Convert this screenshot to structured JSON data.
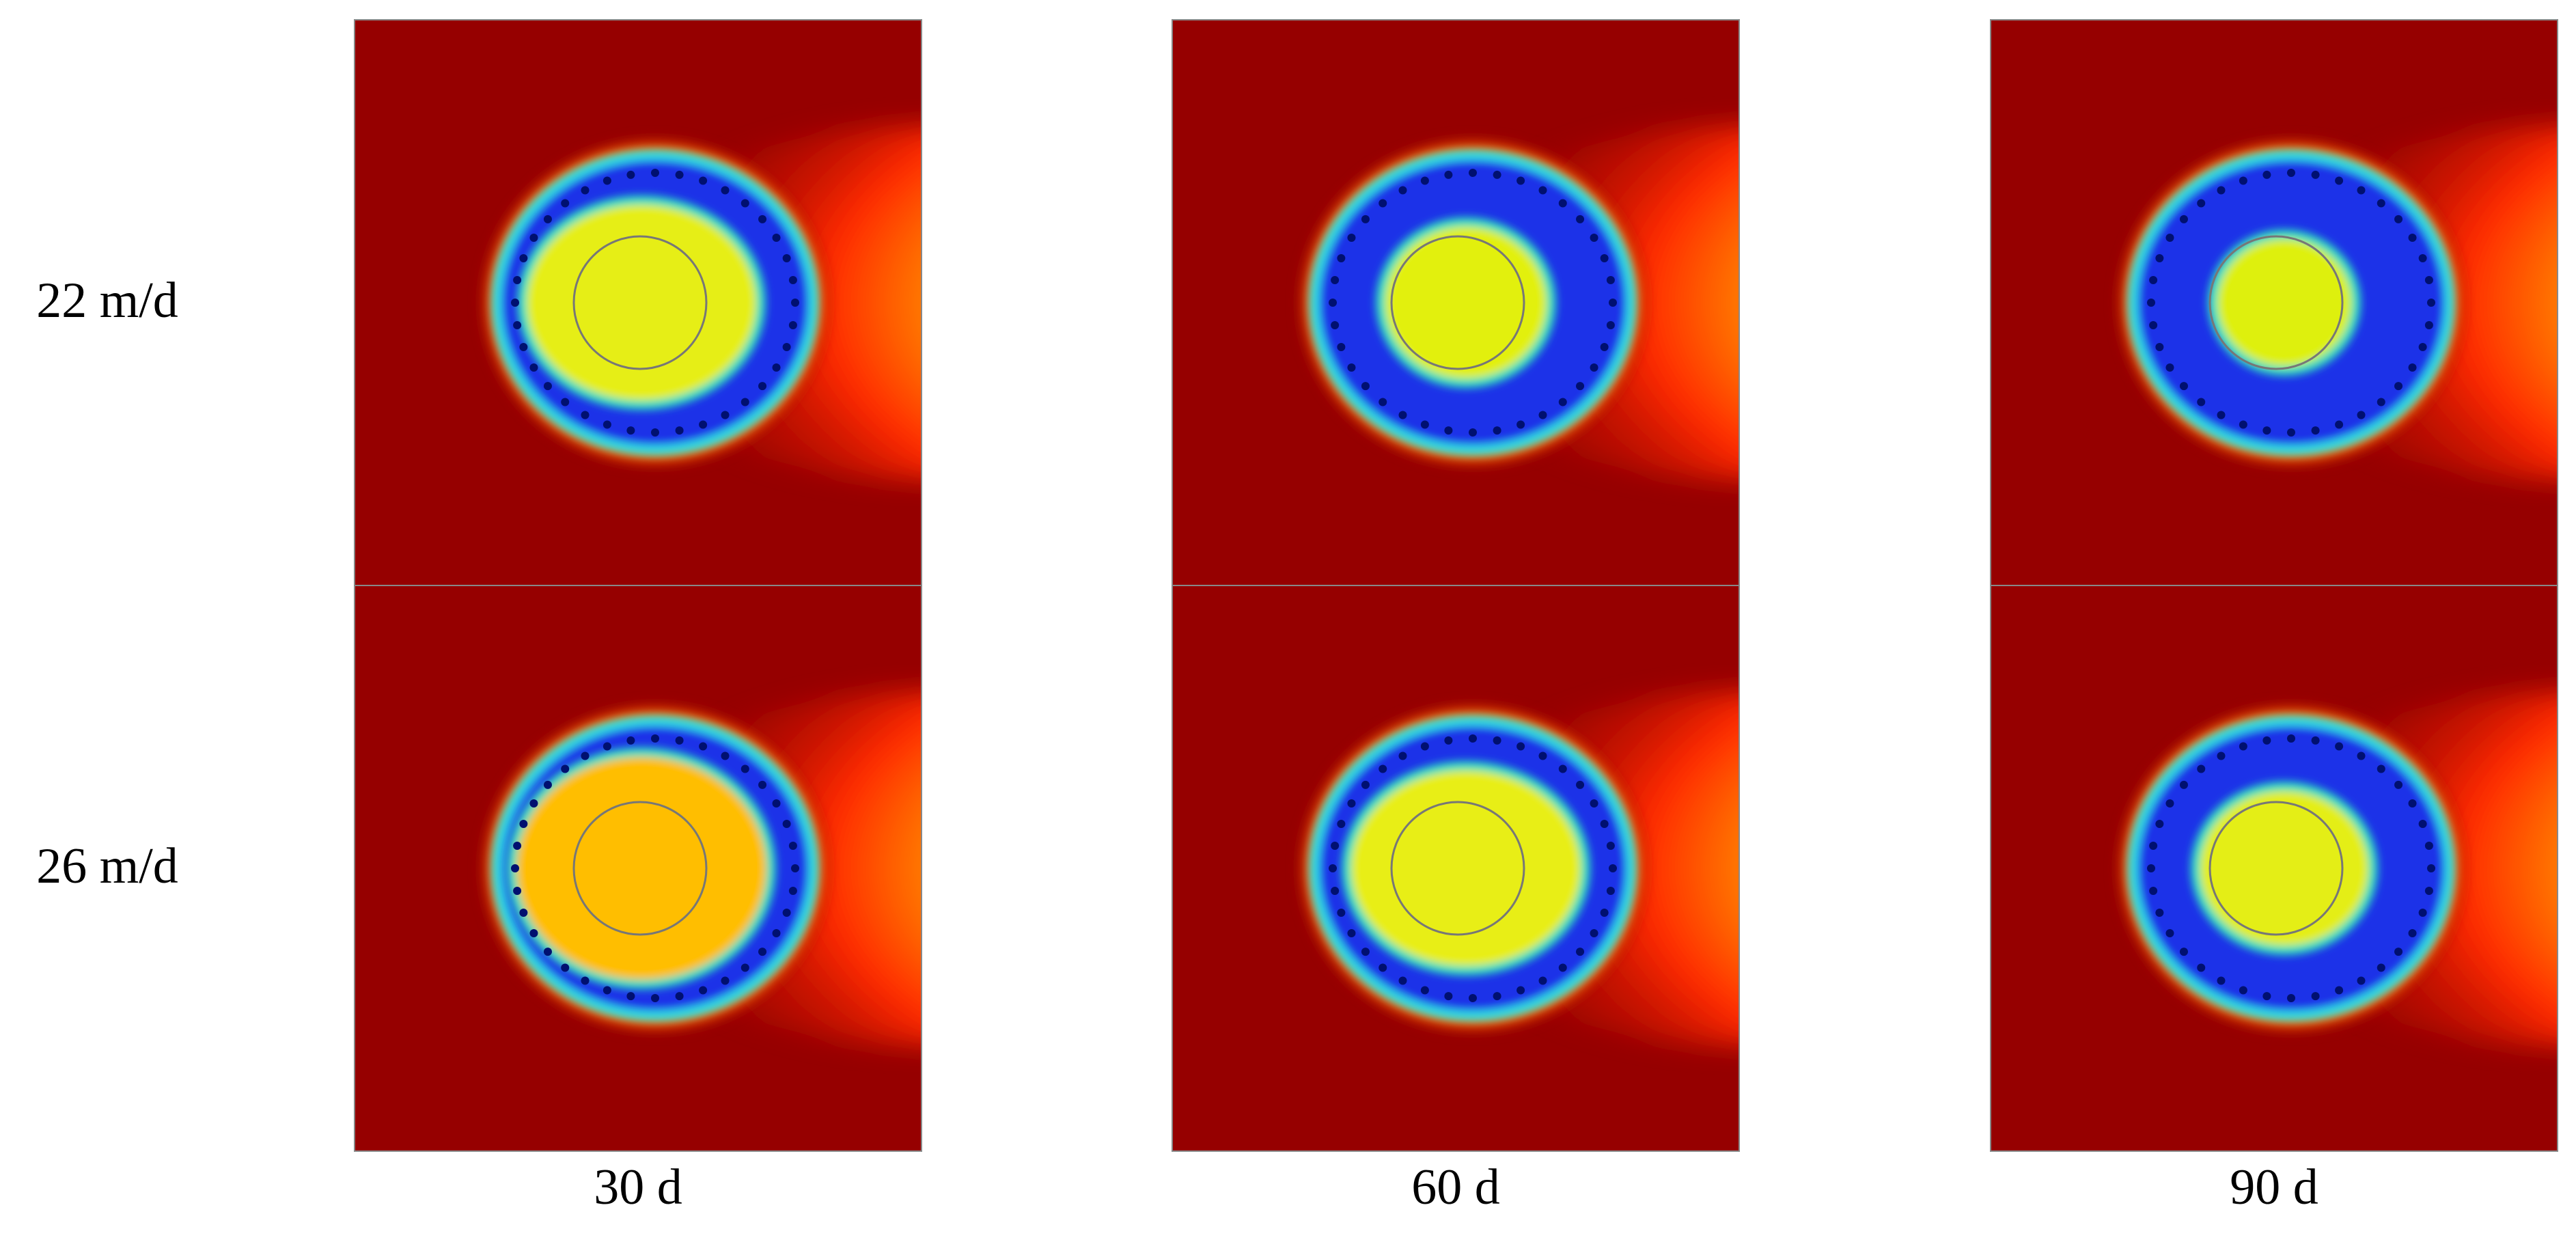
{
  "row_labels": [
    "22 m/d",
    "26 m/d"
  ],
  "column_labels": [
    "30 d",
    "60 d",
    "90 d"
  ]
}
